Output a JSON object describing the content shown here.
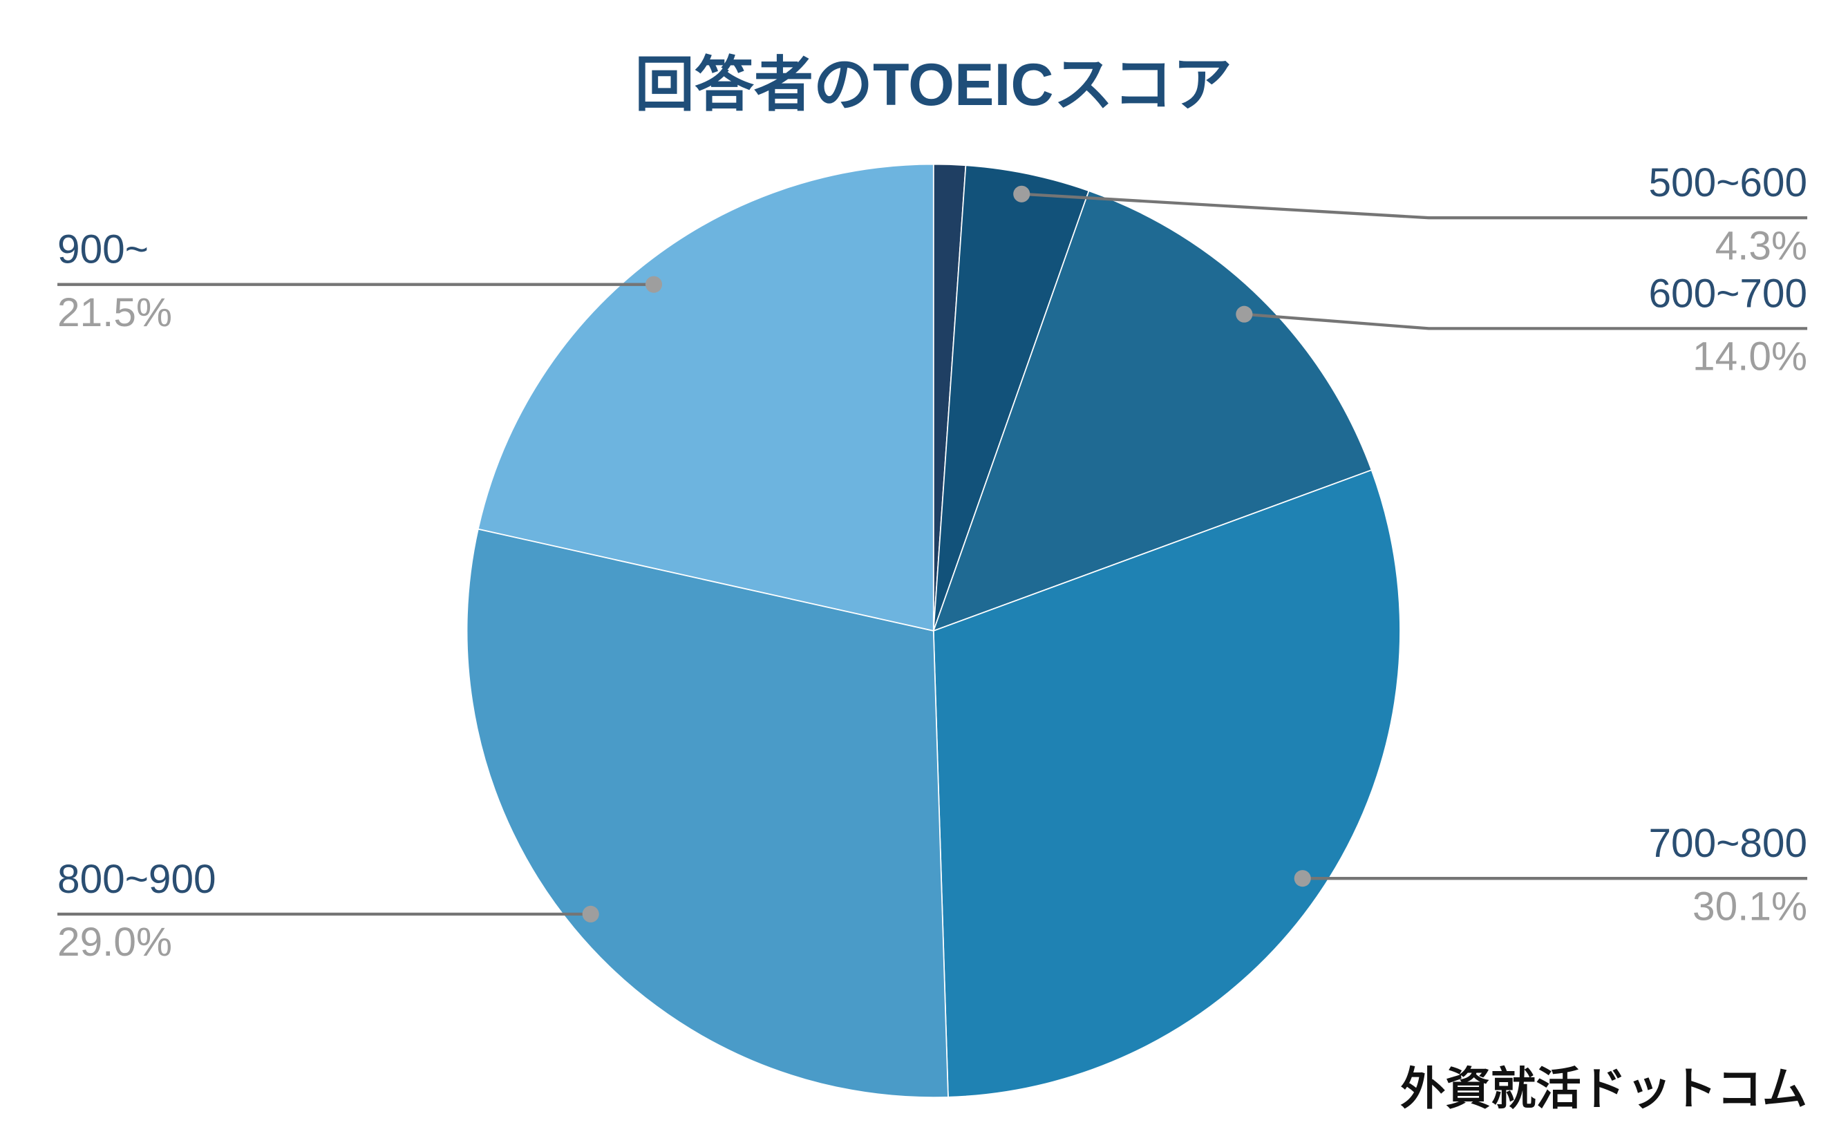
{
  "chart_data": {
    "type": "pie",
    "title": "回答者のTOEICスコア",
    "categories": [
      null,
      "500~600",
      "600~700",
      "700~800",
      "800~900",
      "900~"
    ],
    "values": [
      1.1,
      4.3,
      14.0,
      30.1,
      29.0,
      21.5
    ],
    "value_labels": [
      null,
      "4.3%",
      "14.0%",
      "30.1%",
      "29.0%",
      "21.5%"
    ],
    "colors": [
      "#1f3f63",
      "#12527a",
      "#1f6a93",
      "#1f82b3",
      "#4a9bc8",
      "#6db4df"
    ],
    "annotation": "外資就活ドットコム"
  }
}
